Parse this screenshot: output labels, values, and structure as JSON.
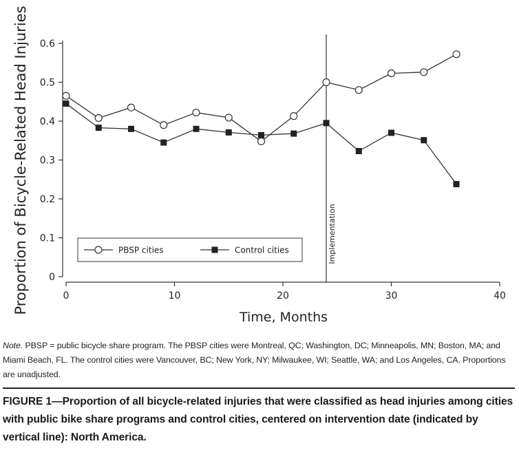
{
  "chart_data": {
    "type": "line",
    "xlabel": "Time, Months",
    "ylabel": "Proportion of Bicycle-Related Head Injuries",
    "xlim": [
      0,
      40
    ],
    "ylim": [
      0,
      0.6
    ],
    "x_ticks": [
      "0",
      "10",
      "20",
      "30",
      "40"
    ],
    "y_ticks": [
      "0",
      "0.1",
      "0.2",
      "0.3",
      "0.4",
      "0.5",
      "0.6"
    ],
    "grid": false,
    "legend_position": "lower-left",
    "vertical_line": {
      "x": 24,
      "label": "Implementation"
    },
    "series": [
      {
        "name": "PBSP cities",
        "marker": "open-circle",
        "x": [
          0,
          3,
          6,
          9,
          12,
          15,
          18,
          21,
          24,
          27,
          30,
          33,
          36
        ],
        "values": [
          0.465,
          0.408,
          0.435,
          0.39,
          0.422,
          0.409,
          0.348,
          0.413,
          0.5,
          0.48,
          0.523,
          0.526,
          0.572
        ]
      },
      {
        "name": "Control cities",
        "marker": "filled-square",
        "x": [
          0,
          3,
          6,
          9,
          12,
          15,
          18,
          21,
          24,
          27,
          30,
          33,
          36
        ],
        "values": [
          0.445,
          0.383,
          0.38,
          0.345,
          0.38,
          0.371,
          0.364,
          0.368,
          0.395,
          0.323,
          0.37,
          0.351,
          0.238
        ]
      }
    ],
    "colors": {
      "line": "#333333",
      "marker_fill_control": "#222222",
      "marker_fill_pbsp": "#ffffff"
    }
  },
  "note": {
    "label": "Note.",
    "text": " PBSP = public bicycle share program. The PBSP cities were Montreal, QC; Washington, DC; Minneapolis, MN; Boston, MA; and Miami Beach, FL. The control cities were Vancouver, BC; New York, NY; Milwaukee, WI; Seattle, WA; and Los Angeles, CA. Proportions are unadjusted."
  },
  "caption": "FIGURE 1—Proportion of all bicycle-related injuries that were classified as head injuries among cities with public bike share programs and control cities, centered on intervention date (indicated by vertical line): North America."
}
